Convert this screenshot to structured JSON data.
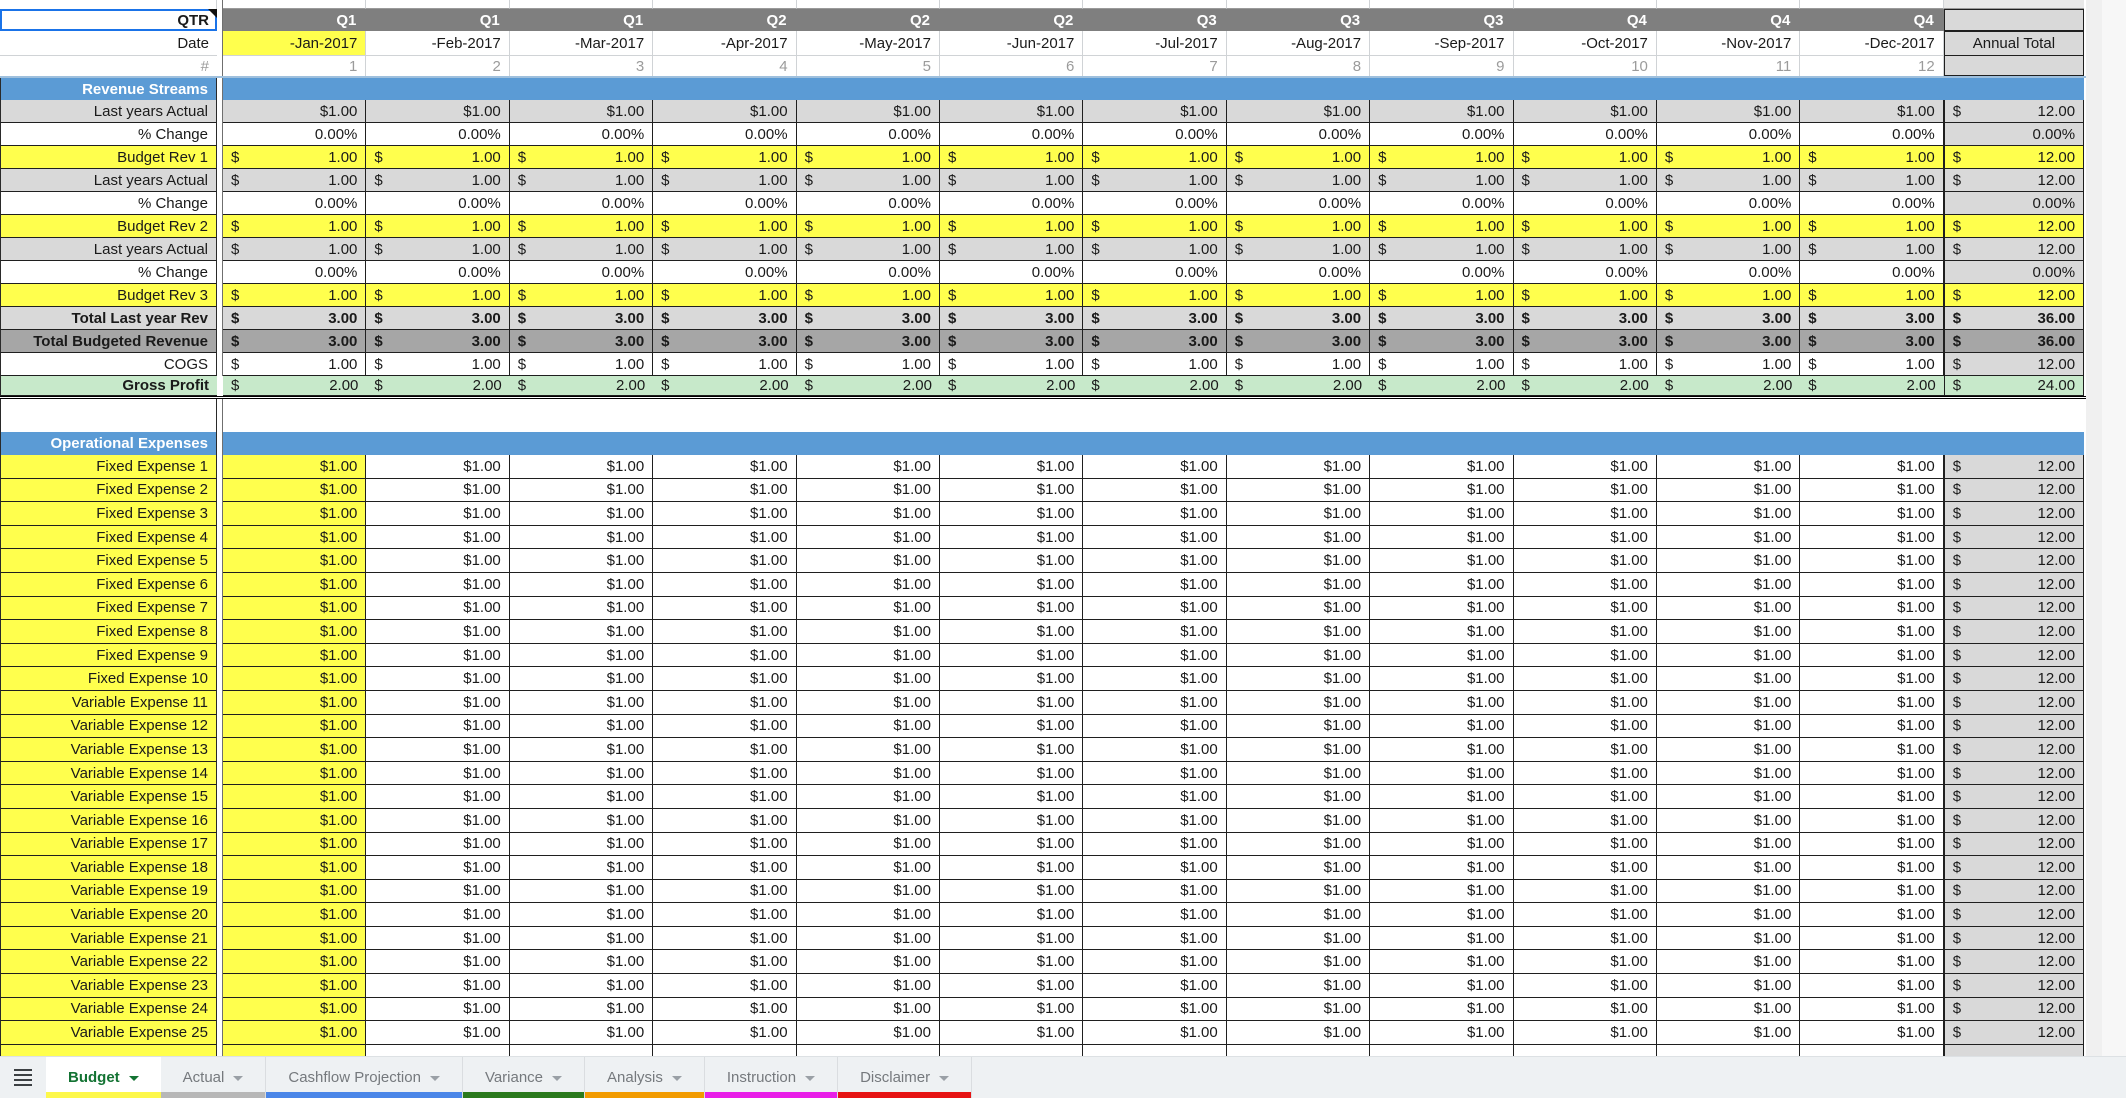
{
  "sheet": {
    "corner_label": "QTR",
    "date_label": "Date",
    "num_label": "#",
    "annual_total_label": "Annual Total",
    "quarters": [
      "Q1",
      "Q1",
      "Q1",
      "Q2",
      "Q2",
      "Q2",
      "Q3",
      "Q3",
      "Q3",
      "Q4",
      "Q4",
      "Q4"
    ],
    "dates": [
      "-Jan-2017",
      "-Feb-2017",
      "-Mar-2017",
      "-Apr-2017",
      "-May-2017",
      "-Jun-2017",
      "-Jul-2017",
      "-Aug-2017",
      "-Sep-2017",
      "-Oct-2017",
      "-Nov-2017",
      "-Dec-2017"
    ],
    "month_numbers": [
      "1",
      "2",
      "3",
      "4",
      "5",
      "6",
      "7",
      "8",
      "9",
      "10",
      "11",
      "12"
    ],
    "colors": {
      "header_gray": "#7f7f7f",
      "section_blue": "#5b9bd5",
      "highlight_yellow": "#ffff4d",
      "light_gray": "#d9d9d9",
      "dark_gray": "#a6a6a6",
      "profit_green": "#c7e9ca",
      "selection_blue": "#1a73e8"
    },
    "revenue_section": {
      "title": "Revenue Streams",
      "rows": [
        {
          "label": "Last years Actual",
          "variant": "actual-plain",
          "month_value": "$1.00",
          "annual_value": "12.00"
        },
        {
          "label": "% Change",
          "variant": "pct",
          "month_value": "0.00%",
          "annual_value": "0.00%"
        },
        {
          "label": "Budget Rev 1",
          "variant": "budget",
          "month_value": "1.00",
          "annual_value": "12.00"
        },
        {
          "label": "Last years Actual",
          "variant": "actual",
          "month_value": "1.00",
          "annual_value": "12.00"
        },
        {
          "label": "% Change",
          "variant": "pct",
          "month_value": "0.00%",
          "annual_value": "0.00%"
        },
        {
          "label": "Budget Rev 2",
          "variant": "budget",
          "month_value": "1.00",
          "annual_value": "12.00"
        },
        {
          "label": "Last years Actual",
          "variant": "actual",
          "month_value": "1.00",
          "annual_value": "12.00"
        },
        {
          "label": "% Change",
          "variant": "pct",
          "month_value": "0.00%",
          "annual_value": "0.00%"
        },
        {
          "label": "Budget Rev 3",
          "variant": "budget",
          "month_value": "1.00",
          "annual_value": "12.00"
        },
        {
          "label": "Total Last year Rev",
          "variant": "total-light",
          "month_value": "3.00",
          "annual_value": "36.00"
        },
        {
          "label": "Total Budgeted Revenue",
          "variant": "total-dark",
          "month_value": "3.00",
          "annual_value": "36.00"
        },
        {
          "label": "COGS",
          "variant": "cogs",
          "month_value": "1.00",
          "annual_value": "12.00"
        },
        {
          "label": "Gross Profit",
          "variant": "gross",
          "month_value": "2.00",
          "annual_value": "24.00"
        }
      ]
    },
    "expense_section": {
      "title": "Operational Expenses",
      "rows": [
        {
          "label": "Fixed Expense 1",
          "variant": "expense",
          "month_value": "$1.00",
          "annual_value": "12.00"
        },
        {
          "label": "Fixed Expense 2",
          "variant": "expense",
          "month_value": "$1.00",
          "annual_value": "12.00"
        },
        {
          "label": "Fixed Expense 3",
          "variant": "expense",
          "month_value": "$1.00",
          "annual_value": "12.00"
        },
        {
          "label": "Fixed Expense 4",
          "variant": "expense",
          "month_value": "$1.00",
          "annual_value": "12.00"
        },
        {
          "label": "Fixed Expense 5",
          "variant": "expense",
          "month_value": "$1.00",
          "annual_value": "12.00"
        },
        {
          "label": "Fixed Expense 6",
          "variant": "expense",
          "month_value": "$1.00",
          "annual_value": "12.00"
        },
        {
          "label": "Fixed Expense 7",
          "variant": "expense",
          "month_value": "$1.00",
          "annual_value": "12.00"
        },
        {
          "label": "Fixed Expense 8",
          "variant": "expense",
          "month_value": "$1.00",
          "annual_value": "12.00"
        },
        {
          "label": "Fixed Expense 9",
          "variant": "expense",
          "month_value": "$1.00",
          "annual_value": "12.00"
        },
        {
          "label": "Fixed Expense 10",
          "variant": "expense",
          "month_value": "$1.00",
          "annual_value": "12.00"
        },
        {
          "label": "Variable Expense 11",
          "variant": "expense",
          "month_value": "$1.00",
          "annual_value": "12.00"
        },
        {
          "label": "Variable Expense 12",
          "variant": "expense",
          "month_value": "$1.00",
          "annual_value": "12.00"
        },
        {
          "label": "Variable Expense 13",
          "variant": "expense",
          "month_value": "$1.00",
          "annual_value": "12.00"
        },
        {
          "label": "Variable Expense 14",
          "variant": "expense",
          "month_value": "$1.00",
          "annual_value": "12.00"
        },
        {
          "label": "Variable Expense 15",
          "variant": "expense",
          "month_value": "$1.00",
          "annual_value": "12.00"
        },
        {
          "label": "Variable Expense 16",
          "variant": "expense",
          "month_value": "$1.00",
          "annual_value": "12.00"
        },
        {
          "label": "Variable Expense 17",
          "variant": "expense",
          "month_value": "$1.00",
          "annual_value": "12.00"
        },
        {
          "label": "Variable Expense 18",
          "variant": "expense",
          "month_value": "$1.00",
          "annual_value": "12.00"
        },
        {
          "label": "Variable Expense 19",
          "variant": "expense",
          "month_value": "$1.00",
          "annual_value": "12.00"
        },
        {
          "label": "Variable Expense 20",
          "variant": "expense",
          "month_value": "$1.00",
          "annual_value": "12.00"
        },
        {
          "label": "Variable Expense 21",
          "variant": "expense",
          "month_value": "$1.00",
          "annual_value": "12.00"
        },
        {
          "label": "Variable Expense 22",
          "variant": "expense",
          "month_value": "$1.00",
          "annual_value": "12.00"
        },
        {
          "label": "Variable Expense 23",
          "variant": "expense",
          "month_value": "$1.00",
          "annual_value": "12.00"
        },
        {
          "label": "Variable Expense 24",
          "variant": "expense",
          "month_value": "$1.00",
          "annual_value": "12.00"
        },
        {
          "label": "Variable Expense 25",
          "variant": "expense",
          "month_value": "$1.00",
          "annual_value": "12.00"
        }
      ],
      "clipped_row": {
        "label": "",
        "variant": "expense",
        "month_value": "",
        "annual_value": ""
      }
    }
  },
  "tabbar": {
    "tabs": [
      {
        "label": "Budget",
        "active": true,
        "underline": "#fdf84b"
      },
      {
        "label": "Actual",
        "active": false,
        "underline": "#b7b7b7"
      },
      {
        "label": "Cashflow Projection",
        "active": false,
        "underline": "#4a86e8"
      },
      {
        "label": "Variance",
        "active": false,
        "underline": "#2b7a1d"
      },
      {
        "label": "Analysis",
        "active": false,
        "underline": "#f29b00"
      },
      {
        "label": "Instruction",
        "active": false,
        "underline": "#e81ee8"
      },
      {
        "label": "Disclaimer",
        "active": false,
        "underline": "#e61313"
      }
    ]
  }
}
